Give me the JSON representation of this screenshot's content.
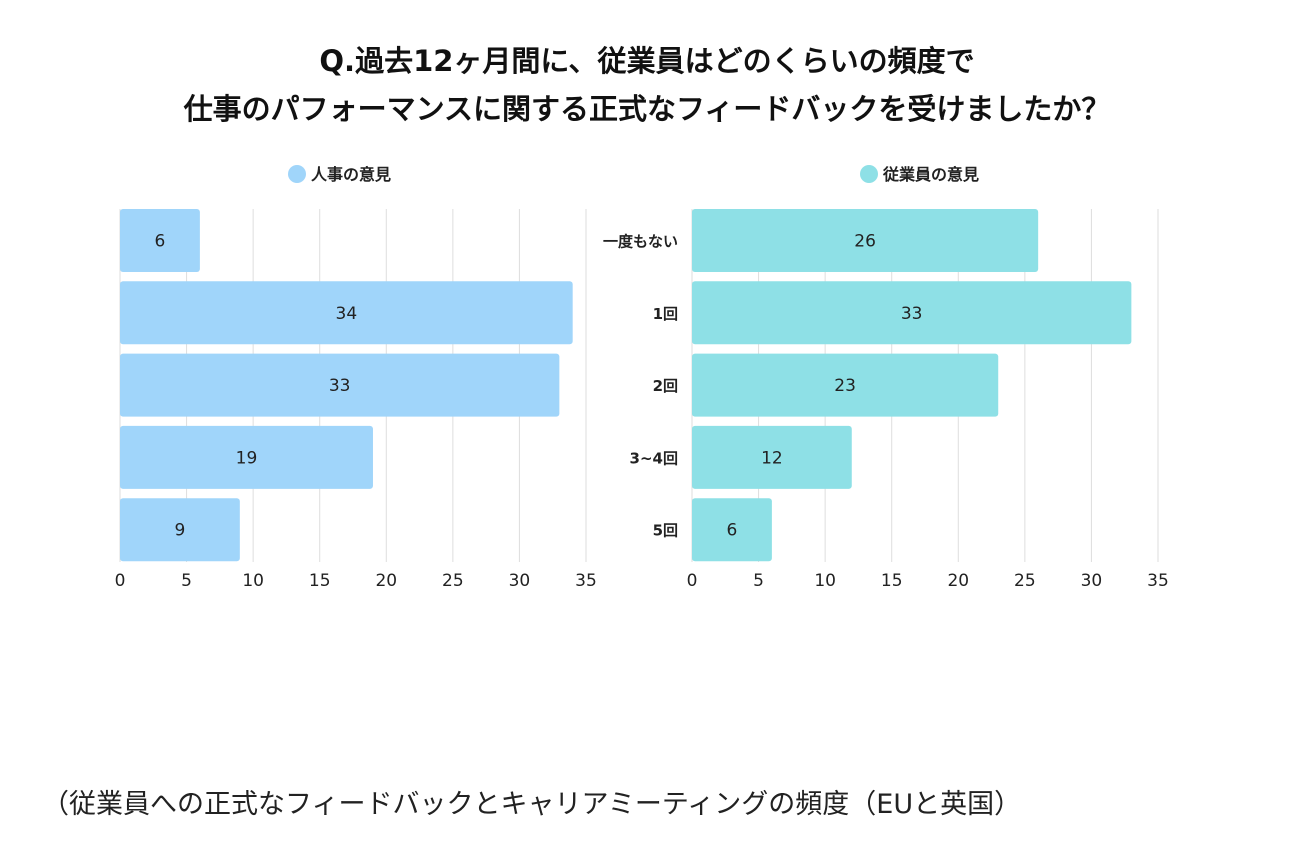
{
  "title_lines": [
    "Q.過去12ヶ月間に、従業員はどのくらいの頻度で",
    "仕事のパフォーマンスに関する正式なフィードバックを受けましたか？"
  ],
  "caption": "（従業員への正式なフィードバックとキャリアミーティングの頻度（EUと英国）",
  "chart_data": [
    {
      "type": "bar",
      "orientation": "horizontal",
      "categories": [
        "一度もない",
        "1回",
        "2回",
        "3~4回",
        "5回"
      ],
      "series": [
        {
          "name": "人事の意見",
          "values": [
            6,
            34,
            33,
            19,
            9
          ],
          "color": "#a0d5fa"
        }
      ],
      "xlim": [
        0,
        35
      ],
      "xticks": [
        0,
        5,
        10,
        15,
        20,
        25,
        30,
        35
      ],
      "grid": true,
      "legend": "top-center"
    },
    {
      "type": "bar",
      "orientation": "horizontal",
      "categories": [
        "一度もない",
        "1回",
        "2回",
        "3~4回",
        "5回"
      ],
      "series": [
        {
          "name": "従業員の意見",
          "values": [
            26,
            33,
            23,
            12,
            6
          ],
          "color": "#8ee0e6"
        }
      ],
      "xlim": [
        0,
        35
      ],
      "xticks": [
        0,
        5,
        10,
        15,
        20,
        25,
        30,
        35
      ],
      "grid": true,
      "legend": "top-center"
    }
  ]
}
